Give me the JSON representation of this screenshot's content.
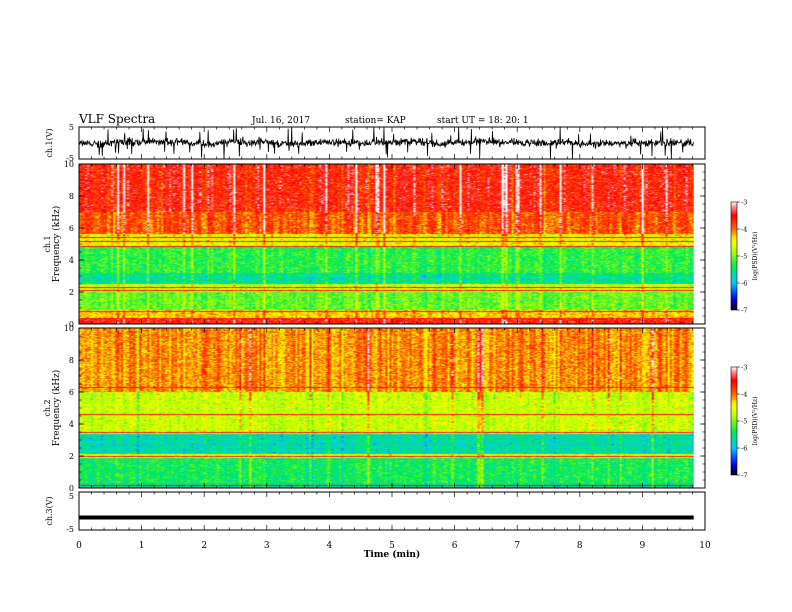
{
  "header": {
    "title": "VLF Spectra",
    "date": "Jul. 16, 2017",
    "station": "station= KAP",
    "start": "start UT =  18: 20: 1"
  },
  "colorbar": {
    "label": "log(PSD)(V²/Hz)",
    "ticks": [
      "-3",
      "-4",
      "-5",
      "-6",
      "-7"
    ],
    "colors": [
      "#ffffff",
      "#ff0000",
      "#ffff00",
      "#00ff00",
      "#00ffff",
      "#0000ff",
      "#000000"
    ]
  },
  "chart_data": [
    {
      "type": "line",
      "panel": "ch1-waveform",
      "ylabel": "ch.1(V)",
      "yticks": [
        "5",
        "-5"
      ],
      "ylim": [
        -5,
        5
      ],
      "xlim": [
        0,
        10
      ],
      "time_extent_min": 9.82,
      "approx_level_v": 0,
      "approx_amplitude_v": 2.5
    },
    {
      "type": "heatmap",
      "panel": "ch1-spectrogram",
      "ylabel_top": "ch.1",
      "ylabel": "Frequency (kHz)",
      "yticks": [
        "0",
        "2",
        "4",
        "6",
        "8",
        "10"
      ],
      "ylim": [
        0,
        10
      ],
      "xlim": [
        0,
        10
      ],
      "zlim": [
        -7,
        -3
      ],
      "bands": [
        {
          "f0": 0.0,
          "f1": 0.3,
          "logpsd": -3.6
        },
        {
          "f0": 0.3,
          "f1": 0.9,
          "logpsd": -4.3
        },
        {
          "f0": 0.9,
          "f1": 2.0,
          "logpsd": -5.1
        },
        {
          "f0": 2.0,
          "f1": 2.5,
          "logpsd": -4.7
        },
        {
          "f0": 2.5,
          "f1": 3.2,
          "logpsd": -5.6
        },
        {
          "f0": 3.2,
          "f1": 4.8,
          "logpsd": -5.3
        },
        {
          "f0": 4.8,
          "f1": 5.6,
          "logpsd": -4.5
        },
        {
          "f0": 5.6,
          "f1": 7.0,
          "logpsd": -3.9
        },
        {
          "f0": 7.0,
          "f1": 10.0,
          "logpsd": -3.6
        }
      ],
      "lines_khz": [
        0.4,
        0.8,
        2.1,
        2.3,
        4.9,
        5.2,
        5.45
      ]
    },
    {
      "type": "heatmap",
      "panel": "ch2-spectrogram",
      "ylabel_top": "ch.2",
      "ylabel": "Frequency (kHz)",
      "yticks": [
        "0",
        "2",
        "4",
        "6",
        "8",
        "10"
      ],
      "ylim": [
        0,
        10
      ],
      "xlim": [
        0,
        10
      ],
      "zlim": [
        -7,
        -3
      ],
      "bands": [
        {
          "f0": 0.0,
          "f1": 0.3,
          "logpsd": -5.6
        },
        {
          "f0": 0.3,
          "f1": 1.9,
          "logpsd": -5.4
        },
        {
          "f0": 1.9,
          "f1": 2.1,
          "logpsd": -4.6
        },
        {
          "f0": 2.1,
          "f1": 3.4,
          "logpsd": -5.7
        },
        {
          "f0": 3.4,
          "f1": 6.0,
          "logpsd": -4.7
        },
        {
          "f0": 6.0,
          "f1": 10.0,
          "logpsd": -4.1
        }
      ],
      "lines_khz": [
        0.2,
        2.0,
        3.5,
        4.6,
        6.3
      ]
    },
    {
      "type": "line",
      "panel": "ch3-waveform",
      "ylabel": "ch.3(V)",
      "yticks": [
        "5",
        "-5"
      ],
      "ylim": [
        -5,
        5
      ],
      "xlim": [
        0,
        10
      ],
      "time_extent_min": 9.82,
      "approx_level_v": -1.7
    }
  ],
  "xaxis": {
    "label": "Time (min)",
    "ticks": [
      "0",
      "1",
      "2",
      "3",
      "4",
      "5",
      "6",
      "7",
      "8",
      "9",
      "10"
    ],
    "xlim": [
      0,
      10
    ]
  }
}
